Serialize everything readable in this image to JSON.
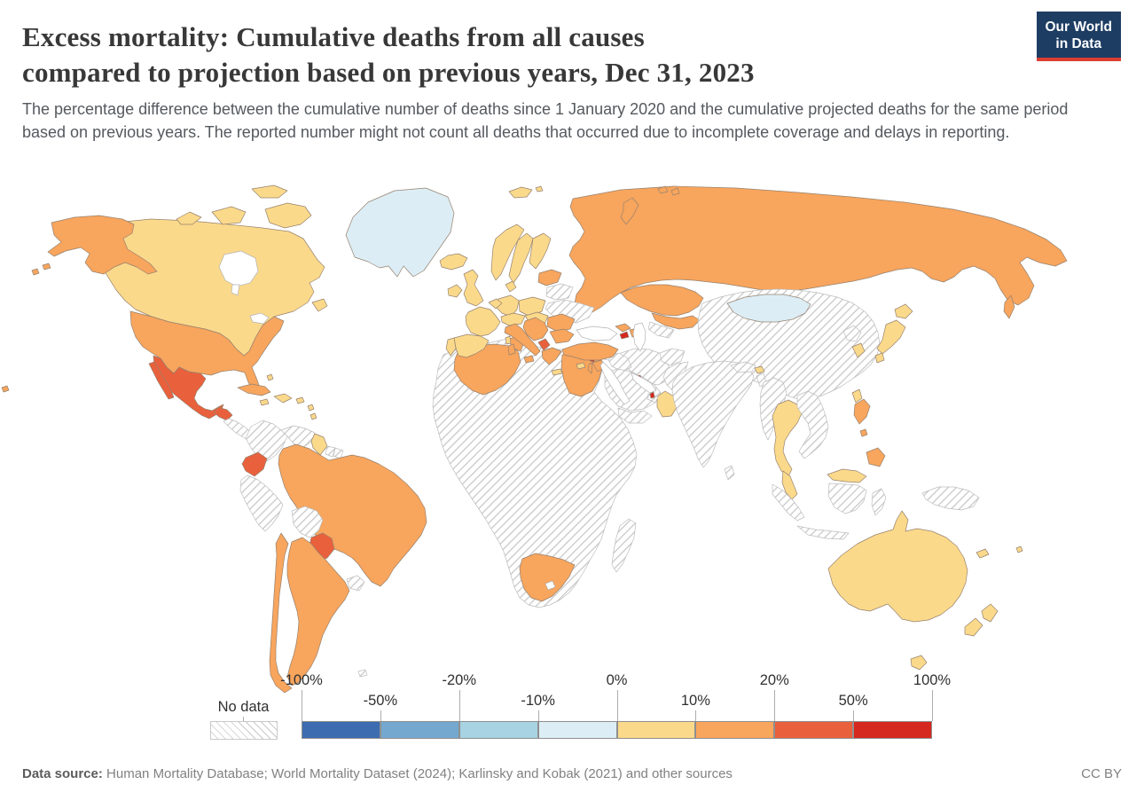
{
  "header": {
    "title_line1": "Excess mortality: Cumulative deaths from all causes",
    "title_line2": "compared to projection based on previous years, Dec 31, 2023",
    "subtitle": "The percentage difference between the cumulative number of deaths since 1 January 2020 and the cumulative projected deaths for the same period based on previous years. The reported number might not count all deaths that occurred due to incomplete coverage and delays in reporting.",
    "logo": {
      "line1": "Our World",
      "line2": "in Data",
      "bg_color": "#1d3d63",
      "accent_color": "#dc3e32"
    }
  },
  "legend": {
    "no_data_label": "No data",
    "tick_labels": [
      "-100%",
      "-50%",
      "-20%",
      "-10%",
      "0%",
      "10%",
      "20%",
      "50%",
      "100%"
    ],
    "colors": [
      "#3d6cb0",
      "#74a8ce",
      "#a7d3e2",
      "#dcedf5",
      "#fbd98b",
      "#f8a55d",
      "#e9603c",
      "#d5281e"
    ]
  },
  "footer": {
    "source_label": "Data source:",
    "source_text": " Human Mortality Database; World Mortality Dataset (2024); Karlinsky and Kobak (2021) and other sources",
    "license": "CC BY"
  },
  "chart_data": {
    "type": "choropleth",
    "title": "Excess mortality: Cumulative deaths from all causes compared to projection based on previous years",
    "date": "Dec 31, 2023",
    "unit": "%",
    "bin_edges_percent": [
      -100,
      -50,
      -20,
      -10,
      0,
      10,
      20,
      50,
      100
    ],
    "bin_labels": [
      "-100% to -50%",
      "-50% to -20%",
      "-20% to -10%",
      "-10% to 0%",
      "0% to 10%",
      "10% to 20%",
      "20% to 50%",
      "50% to 100%"
    ],
    "no_data_label": "No data",
    "regions": {
      "greenland": 3,
      "mongolia": 3,
      "canada": 4,
      "baffin-island": 4,
      "victoria-island": 4,
      "ellesmere-island": 4,
      "arctic-island-small": 4,
      "newfoundland": 4,
      "iceland": 4,
      "svalbard": 4,
      "svalbard-east": 4,
      "alaska": 5,
      "aleutian-1": 5,
      "aleutian-2": 5,
      "usa": 5,
      "left-speck": 5,
      "mexico": 6,
      "baja-california": 6,
      "guatemala": 6,
      "cuba": 5,
      "jamaica": 4,
      "hispaniola": 4,
      "puerto-rico": 4,
      "bahamas": 4,
      "lesser-antilles-1": 4,
      "lesser-antilles-2": 4,
      "costa-rica": 4,
      "central-america": -1,
      "panama": -1,
      "colombia": -1,
      "venezuela": -1,
      "guyana": 4,
      "suriname": -1,
      "french-guiana": -1,
      "ecuador": 6,
      "peru": -1,
      "brazil": 5,
      "bolivia": -1,
      "paraguay": 6,
      "uruguay": -1,
      "argentina": 5,
      "chile": 5,
      "falkland-islands": -1,
      "ireland": 4,
      "uk": 4,
      "portugal": 4,
      "spain": 4,
      "france": 4,
      "benelux": 4,
      "germany": 4,
      "denmark": 4,
      "norway": 4,
      "sweden": 4,
      "finland": 4,
      "poland": 4,
      "central-europe": 4,
      "hungary-slovakia": 4,
      "baltics": 5,
      "belarus": -1,
      "ukraine": -1,
      "italy": 5,
      "sicily": 5,
      "sardinia": 5,
      "corsica": 4,
      "balkans": 5,
      "albania-montenegro": 6,
      "greece": 5,
      "crete": 4,
      "romania": 5,
      "bulgaria": 5,
      "turkey": 5,
      "cyprus": 4,
      "russia": 5,
      "novaya-zemlya": 5,
      "franz-josef-1": 5,
      "franz-josef-2": 5,
      "sakhalin": 5,
      "kazakhstan": 5,
      "central-asia": 5,
      "georgia": 5,
      "armenia": 7,
      "azerbaijan": 5,
      "turkmenistan": -1,
      "iran": -1,
      "iraq": -1,
      "syria": -1,
      "lebanon": 7,
      "israel": 5,
      "jordan": 5,
      "saudi-arabia": -1,
      "kuwait": 7,
      "qatar": 7,
      "uae": -1,
      "yemen": -1,
      "oman": 4,
      "afghanistan": -1,
      "pakistan": -1,
      "india": -1,
      "nepal": -1,
      "bhutan": 4,
      "bangladesh": -1,
      "sri-lanka": -1,
      "china": -1,
      "north-korea": -1,
      "south-korea": 4,
      "japan-hokkaido": 4,
      "japan-honshu": 4,
      "japan-kyushu": 4,
      "taiwan": 4,
      "myanmar": -1,
      "thailand": 4,
      "indochina": -1,
      "malaysia-peninsula": 4,
      "malaysia-borneo": 4,
      "sumatra": -1,
      "java": -1,
      "kalimantan": -1,
      "sulawesi": -1,
      "new-guinea": -1,
      "philippines-luzon": 5,
      "philippines-visayas": 5,
      "philippines-mindanao": 5,
      "africa": -1,
      "algeria": 5,
      "tunisia": 5,
      "egypt": 5,
      "south-africa": 5,
      "madagascar": -1,
      "australia": 4,
      "tasmania": 4,
      "new-zealand-north": 4,
      "new-zealand-south": 4,
      "new-caledonia": 4,
      "fiji": 4
    }
  }
}
